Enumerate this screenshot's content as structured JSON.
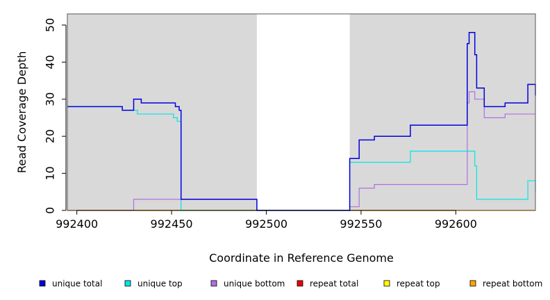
{
  "chart_data": {
    "type": "line",
    "title": "",
    "xlabel": "Coordinate in Reference Genome",
    "ylabel": "Read Coverage Depth",
    "xlim": [
      992395,
      992642
    ],
    "ylim": [
      0,
      53
    ],
    "x_ticks": [
      "992400",
      "992450",
      "992500",
      "992550",
      "992600"
    ],
    "y_ticks": [
      "0",
      "10",
      "20",
      "30",
      "40",
      "50"
    ],
    "shaded_regions": [
      [
        992395,
        992495
      ],
      [
        992544,
        992642
      ]
    ],
    "grid": false,
    "legend_position": "bottom",
    "series": [
      {
        "name": "unique total",
        "color": "#0000dd",
        "points": [
          [
            992395,
            28
          ],
          [
            992424,
            28
          ],
          [
            992424,
            27
          ],
          [
            992430,
            27
          ],
          [
            992430,
            30
          ],
          [
            992434,
            30
          ],
          [
            992434,
            29
          ],
          [
            992452,
            29
          ],
          [
            992452,
            28
          ],
          [
            992454,
            28
          ],
          [
            992454,
            27
          ],
          [
            992455,
            27
          ],
          [
            992455,
            3
          ],
          [
            992495,
            3
          ],
          [
            992495,
            0
          ],
          [
            992544,
            0
          ],
          [
            992544,
            14
          ],
          [
            992549,
            14
          ],
          [
            992549,
            19
          ],
          [
            992557,
            19
          ],
          [
            992557,
            20
          ],
          [
            992576,
            20
          ],
          [
            992576,
            23
          ],
          [
            992606,
            23
          ],
          [
            992606,
            45
          ],
          [
            992607,
            45
          ],
          [
            992607,
            48
          ],
          [
            992610,
            48
          ],
          [
            992610,
            42
          ],
          [
            992611,
            42
          ],
          [
            992611,
            33
          ],
          [
            992615,
            33
          ],
          [
            992615,
            28
          ],
          [
            992626,
            28
          ],
          [
            992626,
            29
          ],
          [
            992638,
            29
          ],
          [
            992638,
            34
          ],
          [
            992642,
            34
          ],
          [
            992642,
            31
          ]
        ]
      },
      {
        "name": "unique top",
        "color": "#00e5e5",
        "points": [
          [
            992395,
            28
          ],
          [
            992424,
            28
          ],
          [
            992424,
            27
          ],
          [
            992432,
            27
          ],
          [
            992432,
            26
          ],
          [
            992451,
            26
          ],
          [
            992451,
            25
          ],
          [
            992453,
            25
          ],
          [
            992453,
            24
          ],
          [
            992455,
            24
          ],
          [
            992455,
            0
          ],
          [
            992544,
            0
          ],
          [
            992544,
            13
          ],
          [
            992576,
            13
          ],
          [
            992576,
            16
          ],
          [
            992610,
            16
          ],
          [
            992610,
            12
          ],
          [
            992611,
            12
          ],
          [
            992611,
            3
          ],
          [
            992638,
            3
          ],
          [
            992638,
            8
          ],
          [
            992642,
            8
          ],
          [
            992642,
            5
          ]
        ]
      },
      {
        "name": "unique bottom",
        "color": "#b070e0",
        "points": [
          [
            992395,
            0
          ],
          [
            992430,
            0
          ],
          [
            992430,
            3
          ],
          [
            992455,
            3
          ],
          [
            992455,
            3
          ],
          [
            992495,
            3
          ],
          [
            992495,
            0
          ],
          [
            992544,
            0
          ],
          [
            992544,
            1
          ],
          [
            992549,
            1
          ],
          [
            992549,
            6
          ],
          [
            992557,
            6
          ],
          [
            992557,
            7
          ],
          [
            992606,
            7
          ],
          [
            992606,
            29
          ],
          [
            992607,
            29
          ],
          [
            992607,
            32
          ],
          [
            992610,
            32
          ],
          [
            992610,
            30
          ],
          [
            992615,
            30
          ],
          [
            992615,
            25
          ],
          [
            992626,
            25
          ],
          [
            992626,
            26
          ],
          [
            992642,
            26
          ]
        ]
      },
      {
        "name": "repeat total",
        "color": "#ee0000",
        "points": [
          [
            992395,
            0
          ],
          [
            992642,
            0
          ]
        ]
      },
      {
        "name": "repeat top",
        "color": "#ffff00",
        "points": [
          [
            992395,
            0
          ],
          [
            992642,
            0
          ]
        ]
      },
      {
        "name": "repeat bottom",
        "color": "#ffa500",
        "points": [
          [
            992395,
            0
          ],
          [
            992642,
            0
          ]
        ]
      }
    ]
  }
}
